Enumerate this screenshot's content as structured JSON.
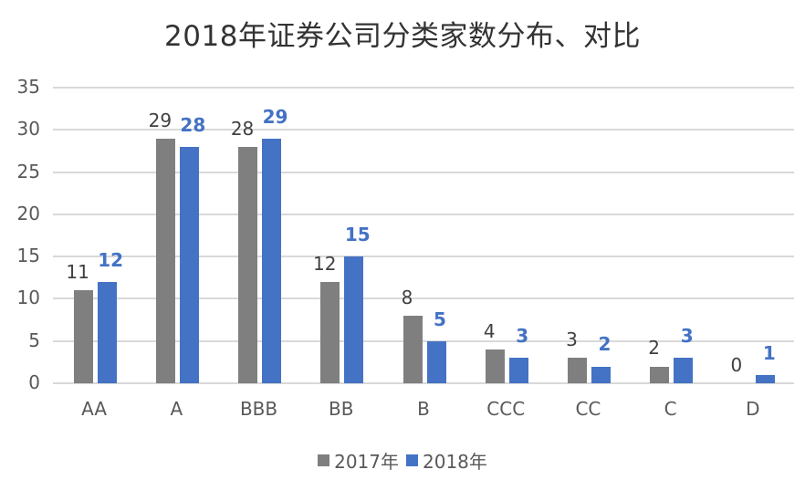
{
  "chart_data": {
    "type": "bar",
    "title": "2018年证券公司分类家数分布、对比",
    "xlabel": "",
    "ylabel": "",
    "categories": [
      "AA",
      "A",
      "BBB",
      "BB",
      "B",
      "CCC",
      "CC",
      "C",
      "D"
    ],
    "series": [
      {
        "name": "2017年",
        "color": "#7f7f7f",
        "values": [
          11,
          29,
          28,
          12,
          8,
          4,
          3,
          2,
          0
        ]
      },
      {
        "name": "2018年",
        "color": "#4472c4",
        "values": [
          12,
          28,
          29,
          15,
          5,
          3,
          2,
          3,
          1
        ]
      }
    ],
    "ylim": [
      0,
      35
    ],
    "yticks": [
      0,
      5,
      10,
      15,
      20,
      25,
      30,
      35
    ],
    "grid": true,
    "legend_position": "bottom",
    "data_labels": true
  }
}
